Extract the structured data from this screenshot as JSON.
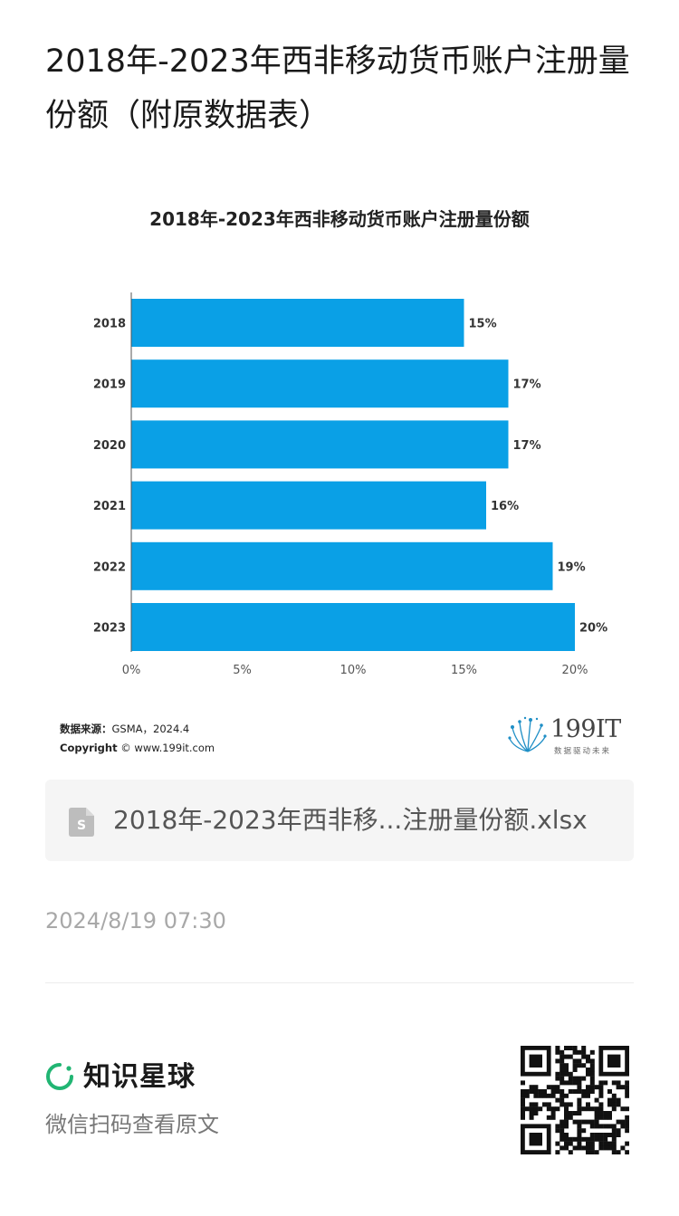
{
  "article": {
    "title": "2018年-2023年西非移动货币账户注册量份额（附原数据表）"
  },
  "chart_data": {
    "type": "bar",
    "orientation": "horizontal",
    "title": "2018年-2023年西非移动货币账户注册量份额",
    "categories": [
      "2018",
      "2019",
      "2020",
      "2021",
      "2022",
      "2023"
    ],
    "values": [
      15,
      17,
      17,
      16,
      19,
      20
    ],
    "value_labels": [
      "15%",
      "17%",
      "17%",
      "16%",
      "19%",
      "20%"
    ],
    "xlim": [
      0,
      20
    ],
    "x_ticks": [
      "0%",
      "5%",
      "10%",
      "15%",
      "20%"
    ],
    "x_tick_values": [
      0,
      5,
      10,
      15,
      20
    ],
    "xlabel": "",
    "ylabel": "",
    "bar_color": "#0aa0e6",
    "grid": false,
    "legend": "none"
  },
  "source": {
    "label": "数据来源：",
    "text": "GSMA，2024.4",
    "copyright_label": "Copyright",
    "copyright_text": "© www.199it.com"
  },
  "logo": {
    "number": "199IT",
    "slogan": "数据驱动未来"
  },
  "attachment": {
    "file_name": "2018年-2023年西非移...注册量份额.xlsx",
    "icon": "spreadsheet-file-icon"
  },
  "post": {
    "timestamp": "2024/8/19 07:30"
  },
  "footer": {
    "brand_name": "知识星球",
    "hint": "微信扫码查看原文",
    "brand_color": "#21b573"
  }
}
